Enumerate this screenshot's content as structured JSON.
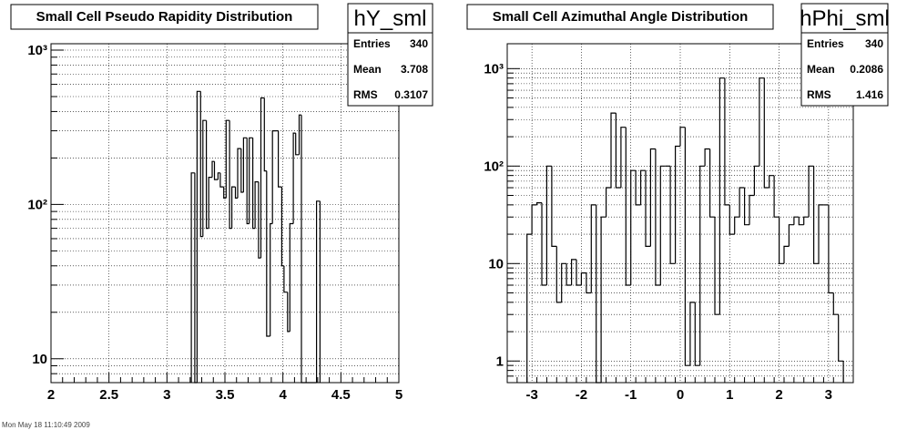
{
  "footer": "Mon May 18 11:10:49 2009",
  "chart_data": [
    {
      "type": "histogram",
      "title": "Small Cell Pseudo Rapidity Distribution",
      "name": "hY_sml",
      "stats": [
        {
          "label": "Entries",
          "value": "340"
        },
        {
          "label": "Mean",
          "value": "3.708"
        },
        {
          "label": "RMS",
          "value": "0.3107"
        }
      ],
      "xlim": [
        2,
        5
      ],
      "ylim": [
        7,
        1100
      ],
      "yscale": "log",
      "grid": true,
      "xticks": [
        {
          "v": 2,
          "label": "2"
        },
        {
          "v": 2.5,
          "label": "2.5"
        },
        {
          "v": 3,
          "label": "3"
        },
        {
          "v": 3.5,
          "label": "3.5"
        },
        {
          "v": 4,
          "label": "4"
        },
        {
          "v": 4.5,
          "label": "4.5"
        },
        {
          "v": 5,
          "label": "5"
        }
      ],
      "yticks": [
        {
          "v": 10,
          "label": "10"
        },
        {
          "v": 100,
          "label": "10²"
        },
        {
          "v": 1000,
          "label": "10³"
        }
      ],
      "bins": [
        {
          "x0": 3.21,
          "x1": 3.24,
          "y": 160
        },
        {
          "x0": 3.24,
          "x1": 3.26,
          "y": 0
        },
        {
          "x0": 3.26,
          "x1": 3.29,
          "y": 540
        },
        {
          "x0": 3.29,
          "x1": 3.31,
          "y": 62
        },
        {
          "x0": 3.31,
          "x1": 3.34,
          "y": 350
        },
        {
          "x0": 3.34,
          "x1": 3.36,
          "y": 70
        },
        {
          "x0": 3.36,
          "x1": 3.39,
          "y": 150
        },
        {
          "x0": 3.39,
          "x1": 3.41,
          "y": 190
        },
        {
          "x0": 3.41,
          "x1": 3.44,
          "y": 145
        },
        {
          "x0": 3.44,
          "x1": 3.46,
          "y": 160
        },
        {
          "x0": 3.46,
          "x1": 3.49,
          "y": 130
        },
        {
          "x0": 3.49,
          "x1": 3.51,
          "y": 110
        },
        {
          "x0": 3.51,
          "x1": 3.54,
          "y": 350
        },
        {
          "x0": 3.54,
          "x1": 3.56,
          "y": 70
        },
        {
          "x0": 3.56,
          "x1": 3.59,
          "y": 130
        },
        {
          "x0": 3.59,
          "x1": 3.61,
          "y": 110
        },
        {
          "x0": 3.61,
          "x1": 3.64,
          "y": 230
        },
        {
          "x0": 3.64,
          "x1": 3.66,
          "y": 120
        },
        {
          "x0": 3.66,
          "x1": 3.69,
          "y": 270
        },
        {
          "x0": 3.69,
          "x1": 3.71,
          "y": 75
        },
        {
          "x0": 3.71,
          "x1": 3.74,
          "y": 270
        },
        {
          "x0": 3.74,
          "x1": 3.76,
          "y": 70
        },
        {
          "x0": 3.76,
          "x1": 3.79,
          "y": 140
        },
        {
          "x0": 3.79,
          "x1": 3.81,
          "y": 45
        },
        {
          "x0": 3.81,
          "x1": 3.84,
          "y": 490
        },
        {
          "x0": 3.84,
          "x1": 3.86,
          "y": 165
        },
        {
          "x0": 3.86,
          "x1": 3.89,
          "y": 14
        },
        {
          "x0": 3.89,
          "x1": 3.91,
          "y": 75
        },
        {
          "x0": 3.91,
          "x1": 3.94,
          "y": 300
        },
        {
          "x0": 3.94,
          "x1": 3.96,
          "y": 300
        },
        {
          "x0": 3.96,
          "x1": 3.99,
          "y": 130
        },
        {
          "x0": 3.99,
          "x1": 4.01,
          "y": 40
        },
        {
          "x0": 4.01,
          "x1": 4.04,
          "y": 27
        },
        {
          "x0": 4.04,
          "x1": 4.06,
          "y": 15
        },
        {
          "x0": 4.06,
          "x1": 4.09,
          "y": 75
        },
        {
          "x0": 4.09,
          "x1": 4.11,
          "y": 290
        },
        {
          "x0": 4.11,
          "x1": 4.14,
          "y": 210
        },
        {
          "x0": 4.14,
          "x1": 4.16,
          "y": 380
        },
        {
          "x0": 4.16,
          "x1": 4.29,
          "y": 0
        },
        {
          "x0": 4.29,
          "x1": 4.32,
          "y": 105
        }
      ]
    },
    {
      "type": "histogram",
      "title": "Small Cell Azimuthal Angle Distribution",
      "name": "hPhi_sml",
      "stats": [
        {
          "label": "Entries",
          "value": "340"
        },
        {
          "label": "Mean",
          "value": "0.2086"
        },
        {
          "label": "RMS",
          "value": "1.416"
        }
      ],
      "xlim": [
        -3.5,
        3.5
      ],
      "ylim": [
        0.6,
        1800
      ],
      "yscale": "log",
      "grid": true,
      "xticks": [
        {
          "v": -3,
          "label": "-3"
        },
        {
          "v": -2,
          "label": "-2"
        },
        {
          "v": -1,
          "label": "-1"
        },
        {
          "v": 0,
          "label": "0"
        },
        {
          "v": 1,
          "label": "1"
        },
        {
          "v": 2,
          "label": "2"
        },
        {
          "v": 3,
          "label": "3"
        }
      ],
      "yticks": [
        {
          "v": 1,
          "label": "1"
        },
        {
          "v": 10,
          "label": "10"
        },
        {
          "v": 100,
          "label": "10²"
        },
        {
          "v": 1000,
          "label": "10³"
        }
      ],
      "bins": [
        {
          "x0": -3.1,
          "x1": -3.0,
          "y": 20
        },
        {
          "x0": -3.0,
          "x1": -2.9,
          "y": 40
        },
        {
          "x0": -2.9,
          "x1": -2.8,
          "y": 42
        },
        {
          "x0": -2.8,
          "x1": -2.7,
          "y": 6
        },
        {
          "x0": -2.7,
          "x1": -2.6,
          "y": 100
        },
        {
          "x0": -2.6,
          "x1": -2.5,
          "y": 15
        },
        {
          "x0": -2.5,
          "x1": -2.4,
          "y": 4
        },
        {
          "x0": -2.4,
          "x1": -2.3,
          "y": 10
        },
        {
          "x0": -2.3,
          "x1": -2.2,
          "y": 6
        },
        {
          "x0": -2.2,
          "x1": -2.1,
          "y": 11
        },
        {
          "x0": -2.1,
          "x1": -2.0,
          "y": 6
        },
        {
          "x0": -2.0,
          "x1": -1.9,
          "y": 8
        },
        {
          "x0": -1.9,
          "x1": -1.8,
          "y": 5
        },
        {
          "x0": -1.8,
          "x1": -1.7,
          "y": 40
        },
        {
          "x0": -1.7,
          "x1": -1.6,
          "y": 0
        },
        {
          "x0": -1.6,
          "x1": -1.5,
          "y": 30
        },
        {
          "x0": -1.5,
          "x1": -1.4,
          "y": 60
        },
        {
          "x0": -1.4,
          "x1": -1.3,
          "y": 350
        },
        {
          "x0": -1.3,
          "x1": -1.2,
          "y": 60
        },
        {
          "x0": -1.2,
          "x1": -1.1,
          "y": 250
        },
        {
          "x0": -1.1,
          "x1": -1.0,
          "y": 6
        },
        {
          "x0": -1.0,
          "x1": -0.9,
          "y": 90
        },
        {
          "x0": -0.9,
          "x1": -0.8,
          "y": 40
        },
        {
          "x0": -0.8,
          "x1": -0.7,
          "y": 90
        },
        {
          "x0": -0.7,
          "x1": -0.6,
          "y": 15
        },
        {
          "x0": -0.6,
          "x1": -0.5,
          "y": 150
        },
        {
          "x0": -0.5,
          "x1": -0.4,
          "y": 6
        },
        {
          "x0": -0.4,
          "x1": -0.3,
          "y": 100
        },
        {
          "x0": -0.3,
          "x1": -0.2,
          "y": 100
        },
        {
          "x0": -0.2,
          "x1": -0.1,
          "y": 10
        },
        {
          "x0": -0.1,
          "x1": 0.0,
          "y": 160
        },
        {
          "x0": 0.0,
          "x1": 0.1,
          "y": 250
        },
        {
          "x0": 0.1,
          "x1": 0.2,
          "y": 0.9
        },
        {
          "x0": 0.2,
          "x1": 0.3,
          "y": 4
        },
        {
          "x0": 0.3,
          "x1": 0.4,
          "y": 0.9
        },
        {
          "x0": 0.4,
          "x1": 0.5,
          "y": 100
        },
        {
          "x0": 0.5,
          "x1": 0.6,
          "y": 150
        },
        {
          "x0": 0.6,
          "x1": 0.7,
          "y": 30
        },
        {
          "x0": 0.7,
          "x1": 0.8,
          "y": 3
        },
        {
          "x0": 0.8,
          "x1": 0.9,
          "y": 800
        },
        {
          "x0": 0.9,
          "x1": 1.0,
          "y": 40
        },
        {
          "x0": 1.0,
          "x1": 1.1,
          "y": 20
        },
        {
          "x0": 1.1,
          "x1": 1.2,
          "y": 30
        },
        {
          "x0": 1.2,
          "x1": 1.3,
          "y": 60
        },
        {
          "x0": 1.3,
          "x1": 1.4,
          "y": 25
        },
        {
          "x0": 1.4,
          "x1": 1.5,
          "y": 50
        },
        {
          "x0": 1.5,
          "x1": 1.6,
          "y": 100
        },
        {
          "x0": 1.6,
          "x1": 1.7,
          "y": 800
        },
        {
          "x0": 1.7,
          "x1": 1.8,
          "y": 60
        },
        {
          "x0": 1.8,
          "x1": 1.9,
          "y": 80
        },
        {
          "x0": 1.9,
          "x1": 2.0,
          "y": 30
        },
        {
          "x0": 2.0,
          "x1": 2.1,
          "y": 10
        },
        {
          "x0": 2.1,
          "x1": 2.2,
          "y": 15
        },
        {
          "x0": 2.2,
          "x1": 2.3,
          "y": 25
        },
        {
          "x0": 2.3,
          "x1": 2.4,
          "y": 30
        },
        {
          "x0": 2.4,
          "x1": 2.5,
          "y": 25
        },
        {
          "x0": 2.5,
          "x1": 2.6,
          "y": 30
        },
        {
          "x0": 2.6,
          "x1": 2.7,
          "y": 100
        },
        {
          "x0": 2.7,
          "x1": 2.8,
          "y": 10
        },
        {
          "x0": 2.8,
          "x1": 2.9,
          "y": 40
        },
        {
          "x0": 2.9,
          "x1": 3.0,
          "y": 40
        },
        {
          "x0": 3.0,
          "x1": 3.1,
          "y": 5
        },
        {
          "x0": 3.1,
          "x1": 3.2,
          "y": 3
        },
        {
          "x0": 3.2,
          "x1": 3.3,
          "y": 1
        }
      ]
    }
  ]
}
